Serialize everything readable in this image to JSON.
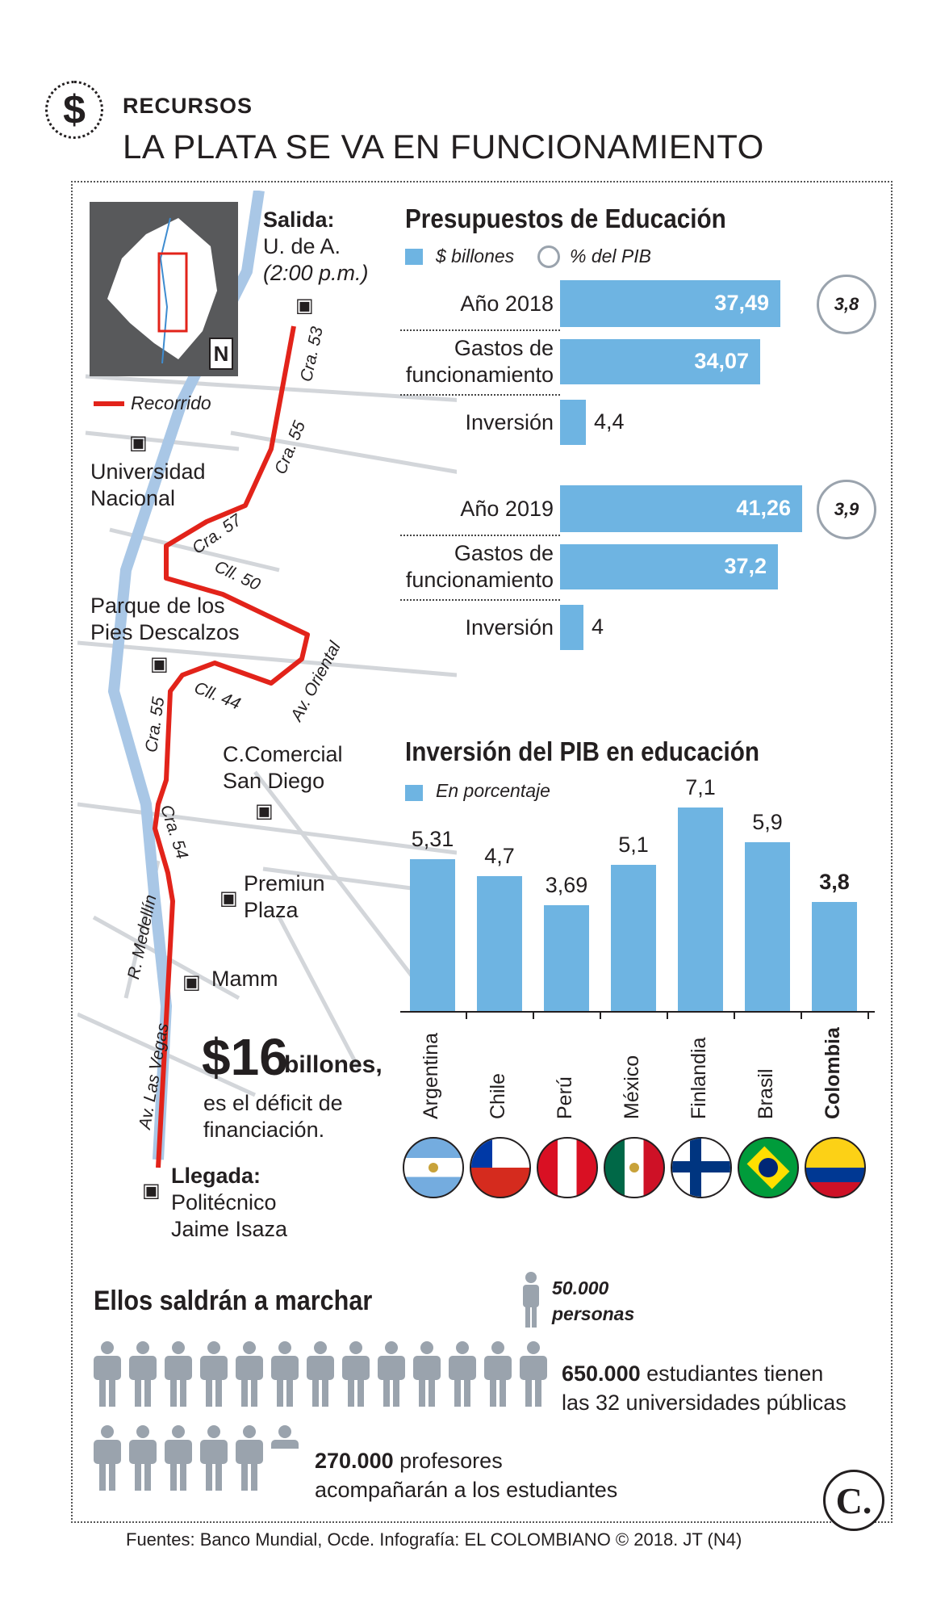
{
  "header": {
    "icon": "dollar-icon",
    "kicker": "RECURSOS",
    "headline": "LA PLATA SE VA EN FUNCIONAMIENTO"
  },
  "map": {
    "start_label": "Salida:",
    "start_place": "U. de A.",
    "start_time": "(2:00 p.m.)",
    "end_label": "Llegada:",
    "end_place_1": "Politécnico",
    "end_place_2": "Jaime Isaza",
    "legend": "Recorrido",
    "route_color": "#e2231a",
    "river_color": "#a9c7e6",
    "north_label": "N",
    "landmarks": {
      "unal_1": "Universidad",
      "unal_2": "Nacional",
      "parque_1": "Parque de los",
      "parque_2": "Pies Descalzos",
      "cc_1": "C.Comercial",
      "cc_2": "San Diego",
      "pp_1": "Premiun",
      "pp_2": "Plaza",
      "mamm": "Mamm"
    },
    "streets": {
      "cra53": "Cra. 53",
      "cra55a": "Cra. 55",
      "cra57": "Cra. 57",
      "cll50": "Cll. 50",
      "avoriental": "Av. Oriental",
      "cll44": "Cll. 44",
      "cra55b": "Cra. 55",
      "cra54": "Cra. 54",
      "rmedellin": "R. Medellín",
      "avlasvegas": "Av. Las Vegas"
    },
    "deficit_amount": "$16",
    "deficit_unit": "billones,",
    "deficit_text_1": "es el déficit de",
    "deficit_text_2": "financiación."
  },
  "budget": {
    "title": "Presupuestos de Educación",
    "legend_bar": "$ billones",
    "legend_circle": "% del PIB",
    "bar_color": "#6eb4e2"
  },
  "chart_data": [
    {
      "type": "bar",
      "title": "Presupuestos de Educación",
      "orientation": "horizontal",
      "unit": "$ billones",
      "groups": [
        {
          "year_label": "Año 2018",
          "pct_pib": "3,8",
          "rows": [
            {
              "label": "Año 2018",
              "value": 37.49,
              "display": "37,49"
            },
            {
              "label_1": "Gastos de",
              "label_2": "funcionamiento",
              "value": 34.07,
              "display": "34,07"
            },
            {
              "label": "Inversión",
              "value": 4.4,
              "display": "4,4"
            }
          ]
        },
        {
          "year_label": "Año 2019",
          "pct_pib": "3,9",
          "rows": [
            {
              "label": "Año 2019",
              "value": 41.26,
              "display": "41,26"
            },
            {
              "label_1": "Gastos de",
              "label_2": "funcionamiento",
              "value": 37.2,
              "display": "37,2"
            },
            {
              "label": "Inversión",
              "value": 4,
              "display": "4"
            }
          ]
        }
      ],
      "xlim": [
        0,
        41.26
      ]
    },
    {
      "type": "bar",
      "title": "Inversión del PIB en educación",
      "legend": "En porcentaje",
      "categories": [
        "Argentina",
        "Chile",
        "Perú",
        "México",
        "Finlandia",
        "Brasil",
        "Colombia"
      ],
      "values": [
        5.31,
        4.7,
        3.69,
        5.1,
        7.1,
        5.9,
        3.8
      ],
      "value_labels": [
        "5,31",
        "4,7",
        "3,69",
        "5,1",
        "7,1",
        "5,9",
        "3,8"
      ],
      "highlight": "Colombia",
      "ylim": [
        0,
        7.1
      ]
    }
  ],
  "march": {
    "title": "Ellos saldrán a marchar",
    "legend_value": "50.000",
    "legend_unit": "personas",
    "students_value": "650.000",
    "students_text_1": "estudiantes tienen",
    "students_text_2": "las 32 universidades públicas",
    "students_icons": 13,
    "profs_value": "270.000",
    "profs_text_1": "profesores",
    "profs_text_2": "acompañarán a los estudiantes",
    "profs_icons": 5.4,
    "icon_color": "#9aa3ad"
  },
  "footer": {
    "sources": "Fuentes: Banco Mundial, Ocde. Infografía: EL COLOMBIANO © 2018. JT (N4)",
    "logo": "C."
  }
}
